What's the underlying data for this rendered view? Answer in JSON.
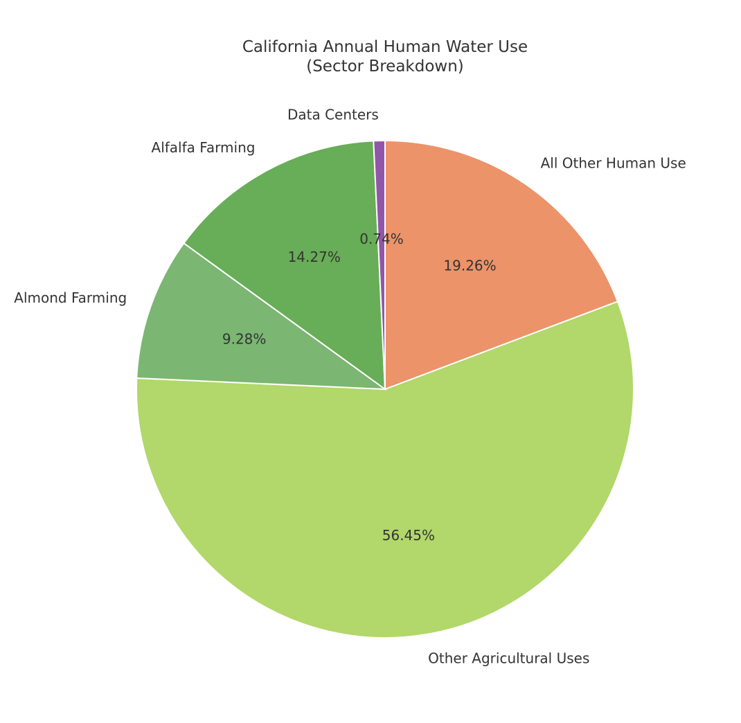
{
  "chart_data": {
    "type": "pie",
    "title": "California Annual Human Water Use\n(Sector Breakdown)",
    "categories": [
      "All Other Human Use",
      "Other Agricultural Uses",
      "Almond Farming",
      "Alfalfa Farming",
      "Data Centers"
    ],
    "values": [
      19.26,
      56.45,
      9.28,
      14.27,
      0.74
    ],
    "value_labels": [
      "19.26%",
      "56.45%",
      "9.28%",
      "14.27%",
      "0.74%"
    ],
    "colors": [
      "#ec9369",
      "#b2d76a",
      "#7bb673",
      "#68ad57",
      "#9256a8"
    ]
  }
}
